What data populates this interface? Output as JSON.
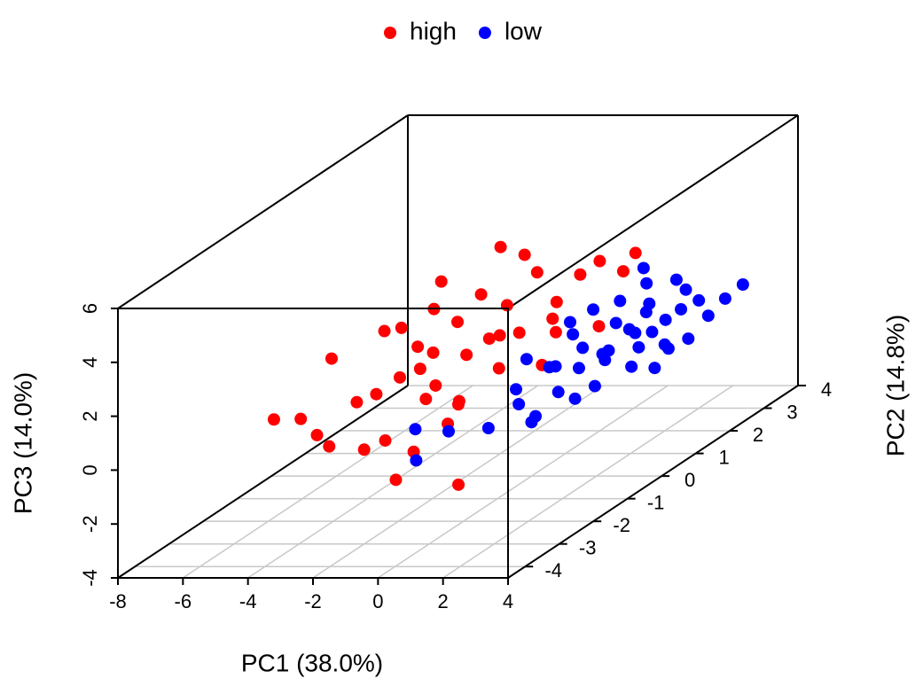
{
  "chart_data": {
    "type": "scatter3d",
    "legend": "top",
    "grid": true,
    "xlabel": "PC1 (38.0%)",
    "ylabel": "PC2 (14.8%)",
    "zlabel": "PC3 (14.0%)",
    "xlim": [
      -8,
      4
    ],
    "ylim": [
      -4.5,
      4
    ],
    "zlim": [
      -4,
      6
    ],
    "xticks": [
      -8,
      -6,
      -4,
      -2,
      0,
      2,
      4
    ],
    "yticks": [
      -4,
      -3,
      -2,
      -1,
      0,
      1,
      2,
      3,
      4
    ],
    "zticks": [
      -4,
      -2,
      0,
      2,
      4,
      6
    ],
    "series": [
      {
        "name": "high",
        "color": "#ff0000",
        "x": [
          -2,
          1.1,
          -3,
          -4,
          -4.5,
          -5.1,
          -5.3,
          -5,
          0.9,
          -0.5,
          -1,
          -3,
          -2.5,
          -2,
          -1.5,
          -1,
          -2.2,
          -3.2,
          -1.8,
          -0.8,
          -0.3,
          -1.2,
          -2.8,
          -3.5,
          -0.6,
          0.2,
          0.5,
          -1.7,
          -2.4,
          -3.8,
          -4,
          -1.4,
          -0.2,
          -2.6,
          -1,
          -3.6,
          -2,
          0,
          -0.9,
          -1.9,
          -2.9,
          -1.3,
          -0.4,
          -3.3,
          -2.1
        ],
        "y": [
          1,
          2,
          0,
          -0.5,
          -2,
          -1,
          -2.5,
          -2,
          -3,
          -3.5,
          -2.5,
          -1,
          -0.5,
          0,
          0.5,
          0,
          -1,
          -1.5,
          1,
          1.5,
          1,
          -1,
          0.5,
          0,
          2,
          2.5,
          1.5,
          -0.5,
          -2,
          -1.5,
          0,
          1.5,
          0.5,
          1,
          -1.5,
          -2.5,
          -3,
          2,
          0.5,
          -1,
          -0.5,
          0,
          1,
          0.5,
          1.8
        ],
        "z": [
          3.66,
          2.6,
          2.2,
          1.8,
          -0.8,
          1.2,
          0.2,
          -0.2,
          -1.8,
          -1.2,
          -1,
          0.5,
          1,
          0.5,
          0.8,
          0,
          -0.3,
          0.3,
          1.5,
          1.2,
          0.5,
          -0.5,
          1.3,
          0.8,
          1.8,
          1.5,
          0.3,
          -0.8,
          -1,
          0,
          1.5,
          2.3,
          -0.3,
          1.9,
          -0.8,
          -0.8,
          -0.5,
          2.3,
          0.9,
          0.2,
          0.4,
          1.1,
          1,
          2.8,
          2.7
        ]
      },
      {
        "name": "low",
        "color": "#0000ff",
        "x": [
          2.83,
          1.45,
          0,
          0.5,
          1,
          1.5,
          2,
          -0.5,
          0.2,
          0.8,
          1.2,
          -1,
          -1.5,
          -0.4,
          -0.8,
          -2,
          0.3,
          1.5,
          2,
          2.5,
          0.6,
          1.1,
          -0.2,
          0.9,
          1.8,
          -0.6,
          0,
          0.5,
          1.3,
          0.7,
          -0.3,
          2.2,
          1.6,
          0.1,
          -1.2,
          0.4,
          1,
          -0.7,
          0.3,
          1.9,
          2.6,
          -0.1,
          0.8,
          1.4,
          -0.4
        ],
        "y": [
          3.5,
          3,
          1.5,
          2,
          2.5,
          2.5,
          3,
          1,
          1.2,
          1.5,
          2,
          0.5,
          -1,
          -3,
          -0.5,
          -1.5,
          0.5,
          1.5,
          2,
          2.8,
          2.8,
          3.2,
          2,
          1,
          2.3,
          0.2,
          0,
          0.8,
          1.8,
          2.2,
          1.5,
          2.5,
          3,
          2.5,
          1,
          1.7,
          1.2,
          1.8,
          3,
          1.8,
          3.2,
          0.8,
          2.6,
          2.2,
          0.5
        ],
        "z": [
          0.17,
          -0.33,
          -0.5,
          0,
          0.3,
          -0.3,
          0,
          -0.8,
          -1,
          -0.6,
          -0.9,
          -1.2,
          -1.5,
          -0.9,
          -1.8,
          -1,
          -1.3,
          -1.2,
          -0.8,
          -0.4,
          0.8,
          0.6,
          0.5,
          -1.5,
          -1.2,
          -1.5,
          -2,
          -1.8,
          -0.2,
          -0.4,
          0,
          -1,
          0.4,
          0.4,
          -0.5,
          -0.9,
          -0.7,
          0.2,
          1.2,
          -1.5,
          -0.1,
          -0.6,
          -0.1,
          -0.5,
          -2.2
        ]
      }
    ]
  }
}
